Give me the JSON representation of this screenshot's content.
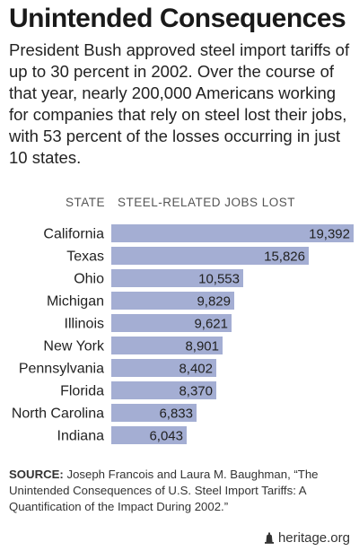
{
  "title": "Unintended Consequences",
  "subtitle": "President Bush approved steel import tariffs of up to 30 percent in 2002. Over the course of that year, nearly 200,000 Americans working for companies that rely on steel lost their jobs, with 53 percent of the losses occurring in just 10 states.",
  "columns": {
    "state": "STATE",
    "jobs": "STEEL-RELATED JOBS LOST"
  },
  "source": {
    "label": "SOURCE:",
    "text": "Joseph Francois and Laura M. Baughman, “The Unintended Consequences of U.S. Steel Import Tariffs: A Quantification of the Impact During 2002.”"
  },
  "brand": "heritage.org",
  "colors": {
    "bar": "#a4aed3",
    "text": "#222222"
  },
  "chart_data": {
    "type": "bar",
    "orientation": "horizontal",
    "categories": [
      "California",
      "Texas",
      "Ohio",
      "Michigan",
      "Illinois",
      "New York",
      "Pennsylvania",
      "Florida",
      "North Carolina",
      "Indiana"
    ],
    "values": [
      19392,
      15826,
      10553,
      9829,
      9621,
      8901,
      8402,
      8370,
      6833,
      6043
    ],
    "value_labels": [
      "19,392",
      "15,826",
      "10,553",
      "9,829",
      "9,621",
      "8,901",
      "8,402",
      "8,370",
      "6,833",
      "6,043"
    ],
    "xlim": [
      0,
      19392
    ],
    "grid": false
  }
}
